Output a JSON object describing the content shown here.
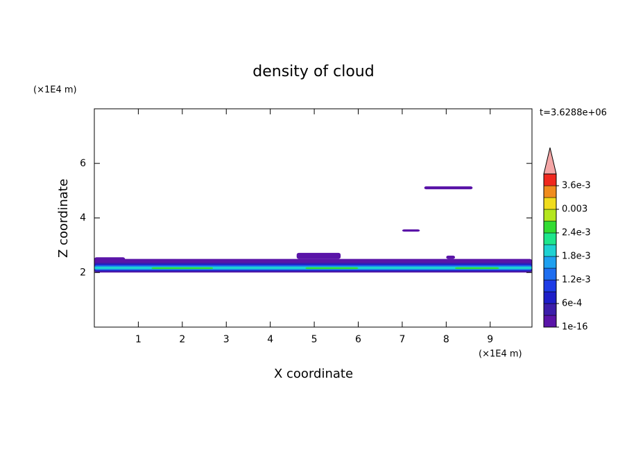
{
  "chart_data": {
    "type": "contour",
    "title": "density of cloud",
    "x_label": "X coordinate",
    "y_label": "Z coordinate",
    "x_unit": "(×1E4 m)",
    "y_unit": "(×1E4 m)",
    "annotation": "t=3.6288e+06",
    "xlim": [
      0,
      9.95
    ],
    "ylim": [
      0,
      8
    ],
    "xticks": [
      1,
      2,
      3,
      4,
      5,
      6,
      7,
      8,
      9
    ],
    "yticks": [
      2,
      4,
      6
    ],
    "regions": [
      {
        "x": [
          0,
          9.95
        ],
        "z": [
          2.0,
          2.5
        ],
        "value": 0.00015
      },
      {
        "x": [
          0,
          0.7
        ],
        "z": [
          2.3,
          2.56
        ],
        "value": 0.00015
      },
      {
        "x": [
          4.6,
          5.6
        ],
        "z": [
          2.5,
          2.72
        ],
        "value": 0.00015
      },
      {
        "x": [
          8.0,
          8.2
        ],
        "z": [
          2.5,
          2.62
        ],
        "value": 0.00015
      },
      {
        "x": [
          7.0,
          7.4
        ],
        "z": [
          3.5,
          3.58
        ],
        "value": 0.00015
      },
      {
        "x": [
          7.5,
          8.6
        ],
        "z": [
          5.05,
          5.16
        ],
        "value": 0.00015
      },
      {
        "x": [
          0,
          9.95
        ],
        "z": [
          2.03,
          2.36
        ],
        "value": 0.00045
      },
      {
        "x": [
          0,
          9.95
        ],
        "z": [
          2.06,
          2.32
        ],
        "value": 0.00075
      },
      {
        "x": [
          0,
          9.95
        ],
        "z": [
          2.09,
          2.27
        ],
        "value": 0.00135
      },
      {
        "x": [
          0,
          9.95
        ],
        "z": [
          2.12,
          2.22
        ],
        "value": 0.00195
      },
      {
        "x": [
          1.3,
          2.7
        ],
        "z": [
          2.13,
          2.19
        ],
        "value": 0.00255
      },
      {
        "x": [
          4.8,
          6.0
        ],
        "z": [
          2.13,
          2.19
        ],
        "value": 0.00255
      },
      {
        "x": [
          8.2,
          9.2
        ],
        "z": [
          2.13,
          2.19
        ],
        "value": 0.00255
      }
    ],
    "colorbar": {
      "lim": [
        1e-16,
        0.0039
      ],
      "step": 0.0003,
      "colors": [
        "#5a14a8",
        "#3c1eaa",
        "#1e1ec8",
        "#1e3ce6",
        "#1e6ef0",
        "#1ea0f0",
        "#1ed2d2",
        "#1ee68c",
        "#32dc32",
        "#b4e61e",
        "#f0dc1e",
        "#f08c1e",
        "#f0281e"
      ],
      "extend_color": "#f4a6a6",
      "ticks": [
        1e-16,
        {
          "value": 0.0006,
          "label": "6e-4"
        },
        {
          "value": 0.0012,
          "label": "1.2e-3"
        },
        {
          "value": 0.0018,
          "label": "1.8e-3"
        },
        {
          "value": 0.0024,
          "label": "2.4e-3"
        },
        0.003,
        {
          "value": 0.0036,
          "label": "3.6e-3"
        }
      ]
    }
  }
}
